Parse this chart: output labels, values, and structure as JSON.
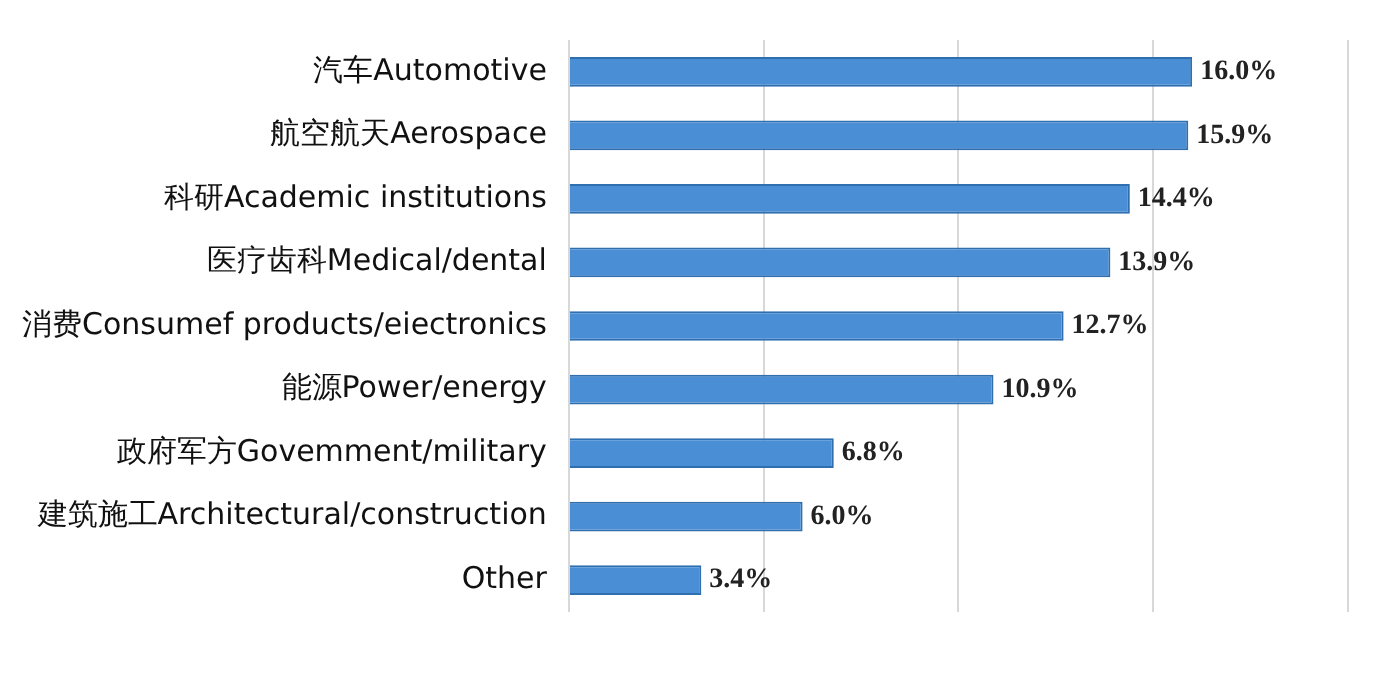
{
  "chart_data": {
    "type": "bar",
    "orientation": "horizontal",
    "categories": [
      "汽车Automotive",
      "航空航天Aerospace",
      "科研Academic institutions",
      "医疗齿科Medical/dental",
      "消费Consumef products/eiectronics",
      "能源Power/energy",
      "政府军方Govemment/military",
      "建筑施工Architectural/construction",
      "Other"
    ],
    "values": [
      16.0,
      15.9,
      14.4,
      13.9,
      12.7,
      10.9,
      6.8,
      6.0,
      3.4
    ],
    "value_labels": [
      "16.0%",
      "15.9%",
      "14.4%",
      "13.9%",
      "12.7%",
      "10.9%",
      "6.8%",
      "6.0%",
      "3.4%"
    ],
    "color": "#4a8fd6",
    "xlim": [
      0,
      20
    ],
    "xticks": [
      {
        "value": 0,
        "label": null
      },
      {
        "value": 5,
        "label": null
      },
      {
        "value": 10,
        "label": null
      },
      {
        "value": 15,
        "label": null
      },
      {
        "value": 20,
        "label": null
      }
    ],
    "grid": "x",
    "tick_labels": "y"
  }
}
